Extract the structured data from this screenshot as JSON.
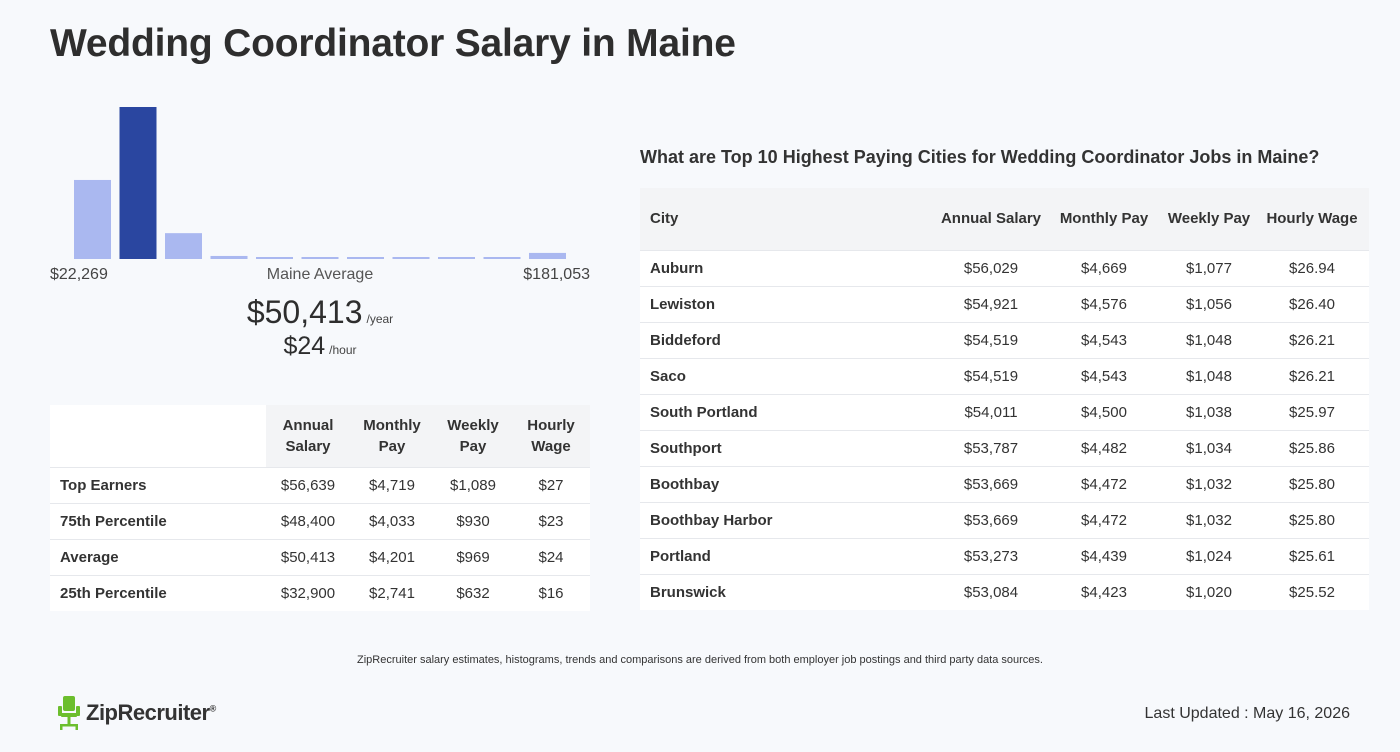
{
  "page": {
    "title": "Wedding Coordinator Salary in Maine"
  },
  "histogram": {
    "min_label": "$22,269",
    "mid_label": "Maine Average",
    "max_label": "$181,053",
    "highlight_color": "#2a46a0",
    "bar_color": "#aab8f0"
  },
  "chart_data": {
    "type": "bar",
    "categories": [
      "1",
      "2",
      "3",
      "4",
      "5",
      "6",
      "7",
      "8",
      "9",
      "10",
      "11"
    ],
    "values": [
      52,
      100,
      17,
      2,
      1,
      1,
      1,
      1,
      1,
      1,
      4
    ],
    "highlight_index": 1,
    "ylim": [
      0,
      100
    ],
    "xlabel": "",
    "ylabel": ""
  },
  "average": {
    "year_value": "$50,413",
    "year_unit": "/year",
    "hour_value": "$24",
    "hour_unit": "/hour"
  },
  "percentile_table": {
    "headers": [
      "Annual Salary",
      "Monthly Pay",
      "Weekly Pay",
      "Hourly Wage"
    ],
    "rows": [
      {
        "label": "Top Earners",
        "values": [
          "$56,639",
          "$4,719",
          "$1,089",
          "$27"
        ]
      },
      {
        "label": "75th Percentile",
        "values": [
          "$48,400",
          "$4,033",
          "$930",
          "$23"
        ]
      },
      {
        "label": "Average",
        "values": [
          "$50,413",
          "$4,201",
          "$969",
          "$24"
        ]
      },
      {
        "label": "25th Percentile",
        "values": [
          "$32,900",
          "$2,741",
          "$632",
          "$16"
        ]
      }
    ]
  },
  "cities": {
    "heading": "What are Top 10 Highest Paying Cities for Wedding Coordinator Jobs in Maine?",
    "headers": [
      "City",
      "Annual Salary",
      "Monthly Pay",
      "Weekly Pay",
      "Hourly Wage"
    ],
    "rows": [
      {
        "city": "Auburn",
        "values": [
          "$56,029",
          "$4,669",
          "$1,077",
          "$26.94"
        ]
      },
      {
        "city": "Lewiston",
        "values": [
          "$54,921",
          "$4,576",
          "$1,056",
          "$26.40"
        ]
      },
      {
        "city": "Biddeford",
        "values": [
          "$54,519",
          "$4,543",
          "$1,048",
          "$26.21"
        ]
      },
      {
        "city": "Saco",
        "values": [
          "$54,519",
          "$4,543",
          "$1,048",
          "$26.21"
        ]
      },
      {
        "city": "South Portland",
        "values": [
          "$54,011",
          "$4,500",
          "$1,038",
          "$25.97"
        ]
      },
      {
        "city": "Southport",
        "values": [
          "$53,787",
          "$4,482",
          "$1,034",
          "$25.86"
        ]
      },
      {
        "city": "Boothbay",
        "values": [
          "$53,669",
          "$4,472",
          "$1,032",
          "$25.80"
        ]
      },
      {
        "city": "Boothbay Harbor",
        "values": [
          "$53,669",
          "$4,472",
          "$1,032",
          "$25.80"
        ]
      },
      {
        "city": "Portland",
        "values": [
          "$53,273",
          "$4,439",
          "$1,024",
          "$25.61"
        ]
      },
      {
        "city": "Brunswick",
        "values": [
          "$53,084",
          "$4,423",
          "$1,020",
          "$25.52"
        ]
      }
    ]
  },
  "footer": {
    "disclaimer": "ZipRecruiter salary estimates, histograms, trends and comparisons are derived from both employer job postings and third party data sources.",
    "logo_text": "ZipRecruiter",
    "logo_reg": "®",
    "logo_color": "#6cbe2d",
    "last_updated": "Last Updated : May 16, 2026"
  }
}
